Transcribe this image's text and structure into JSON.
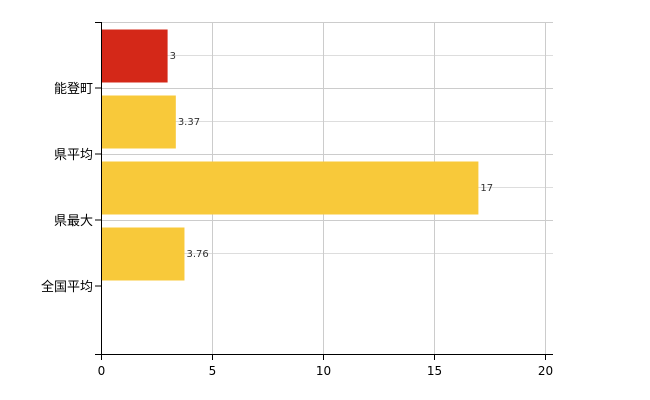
{
  "chart_data": {
    "type": "bar",
    "orientation": "horizontal",
    "categories": [
      "能登町",
      "県平均",
      "県最大",
      "全国平均"
    ],
    "values": [
      3,
      3.37,
      17,
      3.76
    ],
    "data_labels": [
      "3",
      "3.37",
      "17",
      "3.76"
    ],
    "colors": [
      "#d42818",
      "#f8c93a",
      "#f8c93a",
      "#f8c93a"
    ],
    "xlim": [
      0,
      20
    ],
    "xticks": [
      0,
      5,
      10,
      15,
      20
    ],
    "xtick_labels": [
      "0",
      "5",
      "10",
      "15",
      "20"
    ],
    "grid": true,
    "title": "",
    "xlabel": "",
    "ylabel": ""
  }
}
